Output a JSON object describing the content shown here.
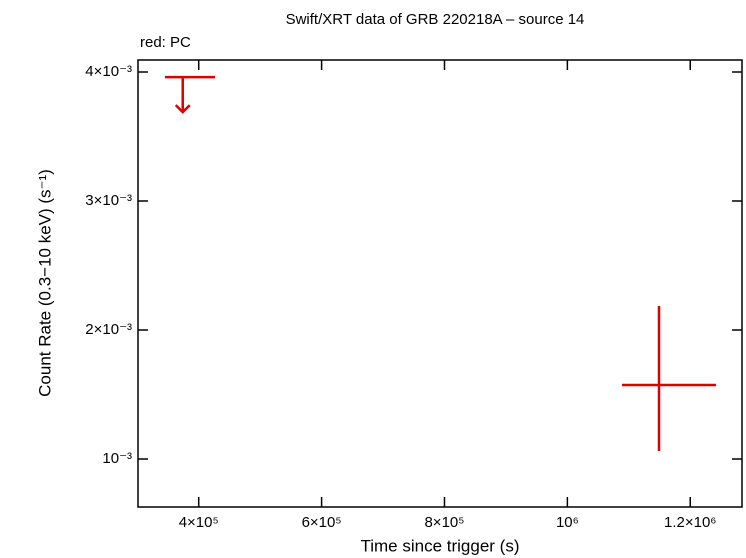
{
  "chart_data": {
    "type": "scatter",
    "title": "Swift/XRT data of GRB 220218A – source 14",
    "x_label": "Time since trigger (s)",
    "y_label": "Count Rate (0.3−10 keV) (s⁻¹)",
    "xlim": [
      301200,
      1284200
    ],
    "ylim": [
      0.000628,
      0.004093
    ],
    "xticks": [
      {
        "value": 400000,
        "label": "4×10⁵"
      },
      {
        "value": 600000,
        "label": "6×10⁵"
      },
      {
        "value": 800000,
        "label": "8×10⁵"
      },
      {
        "value": 1000000,
        "label": "10⁶"
      },
      {
        "value": 1200000,
        "label": "1.2×10⁶"
      }
    ],
    "yticks": [
      {
        "value": 0.001,
        "label": "10⁻³"
      },
      {
        "value": 0.002,
        "label": "2×10⁻³"
      },
      {
        "value": 0.003,
        "label": "3×10⁻³"
      },
      {
        "value": 0.004,
        "label": "4×10⁻³"
      }
    ],
    "series": [
      {
        "name": "red: PC",
        "color": "#e00000",
        "x": [
          374000,
          1149100
        ],
        "xerr_minus": [
          29000,
          60200
        ],
        "xerr_plus": [
          52500,
          92800
        ],
        "y": [
          0.00396,
          0.001574
        ],
        "yerr_minus": [
          null,
          0.000512
        ],
        "yerr_plus": [
          null,
          0.000612
        ],
        "upper_limit": [
          true,
          false
        ]
      }
    ]
  }
}
